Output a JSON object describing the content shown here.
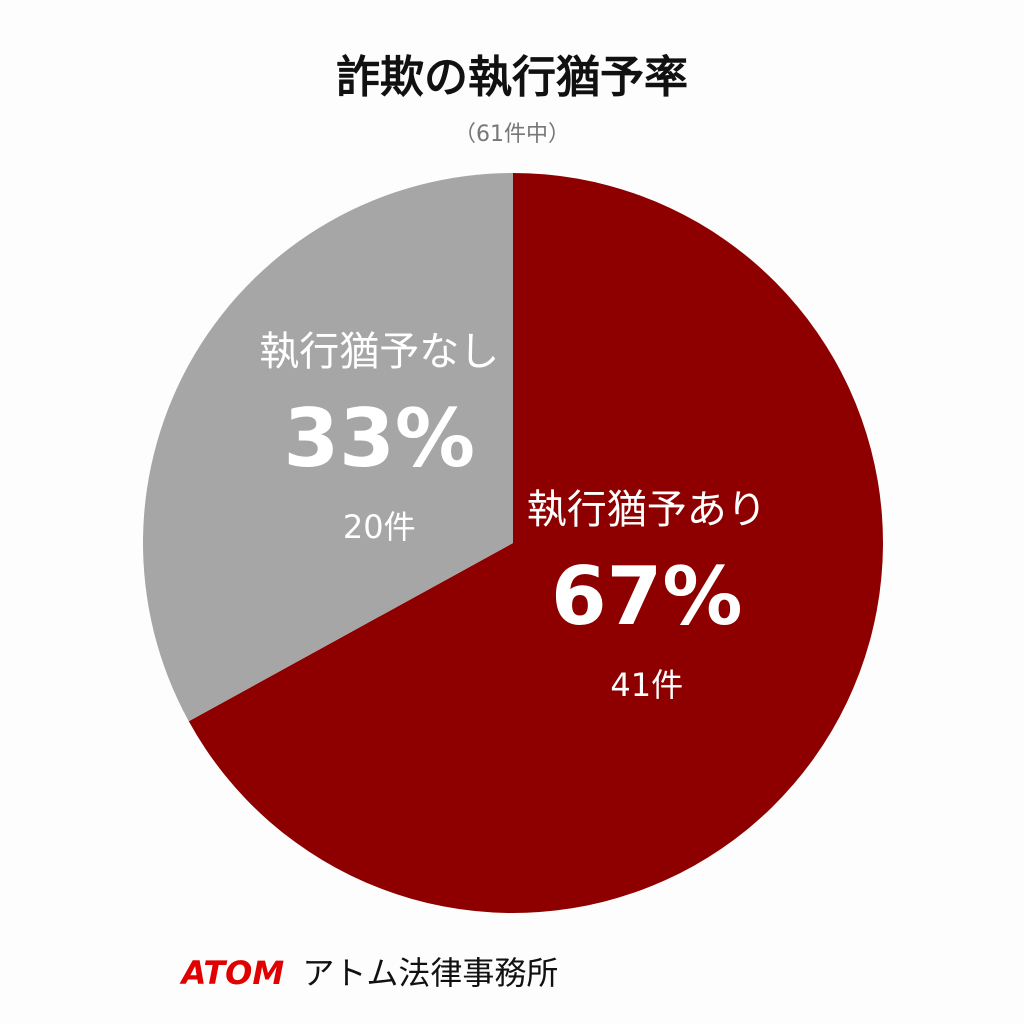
{
  "chart_data": {
    "type": "pie",
    "title": "詐欺の執行猶予率",
    "subtitle": "（61件中）",
    "categories": [
      "執行猶予あり",
      "執行猶予なし"
    ],
    "values": [
      67,
      33
    ],
    "value_labels": [
      "67%",
      "33%"
    ],
    "counts": [
      41,
      20
    ],
    "count_labels": [
      "41件",
      "20件"
    ],
    "colors": [
      "#8e0000",
      "#a6a6a6"
    ]
  },
  "footer": {
    "brand": "ATOM",
    "name": "アトム法律事務所"
  }
}
